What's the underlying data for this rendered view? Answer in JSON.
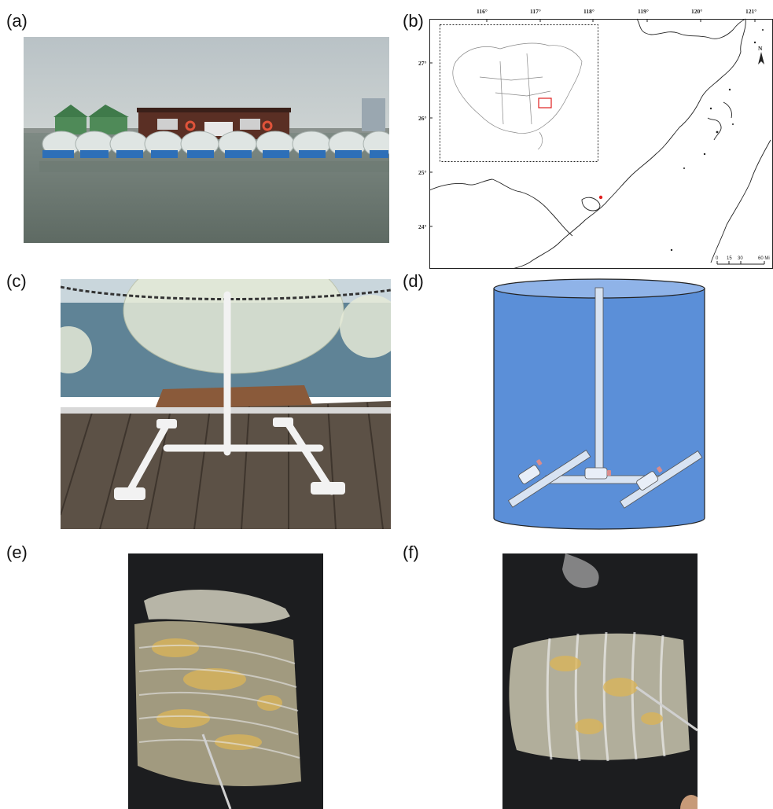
{
  "panels": {
    "a": {
      "label": "(a)"
    },
    "b": {
      "label": "(b)"
    },
    "c": {
      "label": "(c)"
    },
    "d": {
      "label": "(d)"
    },
    "e": {
      "label": "(e)"
    },
    "f": {
      "label": "(f)"
    }
  },
  "map": {
    "longitudes": [
      "116°",
      "117°",
      "118°",
      "119°",
      "120°",
      "121°"
    ],
    "latitudes": [
      "27°",
      "26°",
      "25°",
      "24°"
    ],
    "north_label": "N",
    "scale_labels": [
      "0",
      "15",
      "30",
      "60 Mi"
    ]
  }
}
